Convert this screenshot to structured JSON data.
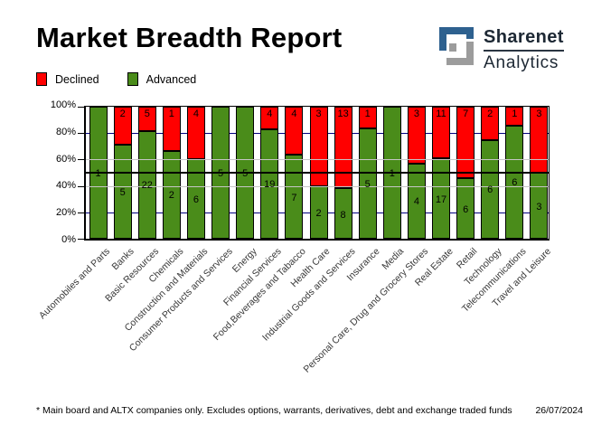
{
  "header": {
    "title": "Market Breadth Report",
    "logo": {
      "name": "Sharenet",
      "division": "Analytics"
    }
  },
  "legend": {
    "declined": {
      "label": "Declined",
      "color": "#ff0000"
    },
    "advanced": {
      "label": "Advanced",
      "color": "#4a8c1a"
    }
  },
  "chart_data": {
    "type": "bar",
    "stacked": true,
    "unit": "percent of total; segment labels show counts of shares",
    "categories": [
      "Automobiles and Parts",
      "Banks",
      "Basic Resources",
      "Chemicals",
      "Construction and Materials",
      "Consumer Products and Services",
      "Energy",
      "Financial Services",
      "Food,Beverages and Tabacco",
      "Health Care",
      "Industrial Goods and Services",
      "Insurance",
      "Media",
      "Personal Care, Drug and Grocery Stores",
      "Real Estate",
      "Retail",
      "Technology",
      "Telecommunications",
      "Travel and Leisure"
    ],
    "series": [
      {
        "name": "Advanced",
        "color": "#4a8c1a",
        "values": [
          1,
          5,
          22,
          2,
          6,
          5,
          5,
          19,
          7,
          2,
          8,
          5,
          1,
          4,
          17,
          6,
          6,
          6,
          3
        ]
      },
      {
        "name": "Declined",
        "color": "#ff0000",
        "values": [
          0,
          2,
          5,
          1,
          4,
          0,
          0,
          4,
          4,
          3,
          13,
          1,
          0,
          3,
          11,
          7,
          2,
          1,
          3
        ]
      }
    ],
    "y_ticks": [
      "0%",
      "20%",
      "40%",
      "60%",
      "80%",
      "100%"
    ],
    "ylim": [
      0,
      100
    ],
    "grid": {
      "navy_pct": [
        20,
        80
      ],
      "grey_pct": [
        40,
        60
      ],
      "reference_pct": 50
    },
    "legend_position": "top-left"
  },
  "footer": {
    "note": "* Main board and ALTX companies only. Excludes options, warrants, derivatives, debt and exchange traded funds",
    "date": "26/07/2024"
  },
  "colors": {
    "advanced": "#4a8c1a",
    "declined": "#ff0000",
    "grid_navy": "#00007f",
    "grid_grey": "#c6c6c6",
    "reference_line": "#000000",
    "logo_blue": "#2e618f",
    "logo_grey": "#9c9c9c"
  }
}
